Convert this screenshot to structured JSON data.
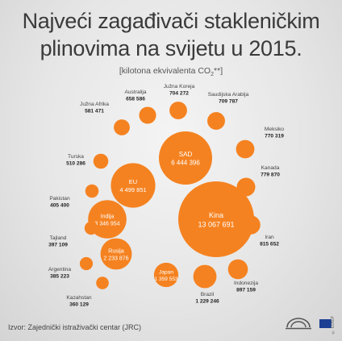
{
  "header": {
    "title_line1": "Najveći zagađivači stakleničkim",
    "title_line2": "plinovima na svijetu u 2015.",
    "subtitle_prefix": "[kilotona ekvivalenta CO",
    "subtitle_sub": "2",
    "subtitle_suffix": "**]"
  },
  "footer": {
    "source": "Izvor: Zajednički istraživački centar (JRC)",
    "credit": "© EU/EP"
  },
  "colors": {
    "bubble": "#f58220",
    "text": "#3a3a3a"
  },
  "chart_data": {
    "type": "bubble",
    "title": "Najveći zagađivači stakleničkim plinovima na svijetu u 2015.",
    "unit": "[kilotona ekvivalenta CO2**]",
    "series": [
      {
        "name": "Kina",
        "value": 13067691,
        "label": "13 067 691"
      },
      {
        "name": "SAD",
        "value": 6444396,
        "label": "6 444 396"
      },
      {
        "name": "EU",
        "value": 4499851,
        "label": "4 499 851"
      },
      {
        "name": "Indija",
        "value": 3346954,
        "label": "3 346 954"
      },
      {
        "name": "Rusija",
        "value": 2233876,
        "label": "2 233 876"
      },
      {
        "name": "Japan",
        "value": 1359553,
        "label": "1 359 553"
      },
      {
        "name": "Brazil",
        "value": 1229246,
        "label": "1 229 246"
      },
      {
        "name": "Indonezija",
        "value": 897159,
        "label": "897 159"
      },
      {
        "name": "Iran",
        "value": 815652,
        "label": "815 652"
      },
      {
        "name": "Kanada",
        "value": 779870,
        "label": "779 870"
      },
      {
        "name": "Meksiko",
        "value": 770319,
        "label": "770 319"
      },
      {
        "name": "Saudijska Arabija",
        "value": 709787,
        "label": "709 787"
      },
      {
        "name": "Južna Koreja",
        "value": 704272,
        "label": "704 272"
      },
      {
        "name": "Australija",
        "value": 658586,
        "label": "658 586"
      },
      {
        "name": "Južna Afrika",
        "value": 581471,
        "label": "581 471"
      },
      {
        "name": "Turska",
        "value": 510286,
        "label": "510 286"
      },
      {
        "name": "Pakistan",
        "value": 405400,
        "label": "405 400"
      },
      {
        "name": "Tajland",
        "value": 397109,
        "label": "397 109"
      },
      {
        "name": "Argentina",
        "value": 385223,
        "label": "385 223"
      },
      {
        "name": "Kazahstan",
        "value": 360129,
        "label": "360 129"
      }
    ]
  }
}
